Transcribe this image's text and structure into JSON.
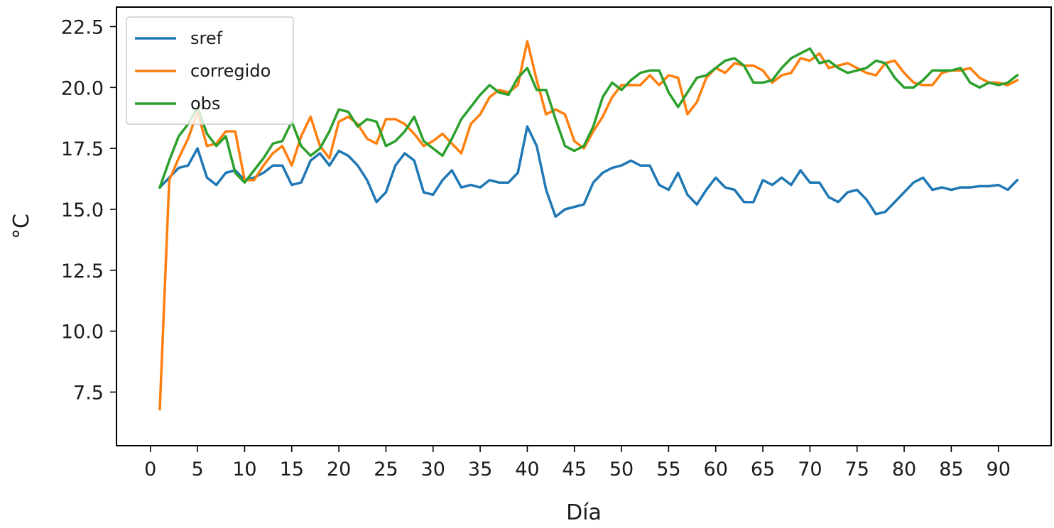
{
  "chart_data": {
    "type": "line",
    "title": "",
    "xlabel": "Día",
    "ylabel": "°C",
    "xlim": [
      -3.6,
      95.6
    ],
    "ylim": [
      5.3,
      23.3
    ],
    "xticks": [
      0,
      5,
      10,
      15,
      20,
      25,
      30,
      35,
      40,
      45,
      50,
      55,
      60,
      65,
      70,
      75,
      80,
      85,
      90
    ],
    "xtick_labels": [
      "0",
      "5",
      "10",
      "15",
      "20",
      "25",
      "30",
      "35",
      "40",
      "45",
      "50",
      "55",
      "60",
      "65",
      "70",
      "75",
      "80",
      "85",
      "90"
    ],
    "yticks": [
      7.5,
      10.0,
      12.5,
      15.0,
      17.5,
      20.0,
      22.5
    ],
    "ytick_labels": [
      "7.5",
      "10.0",
      "12.5",
      "15.0",
      "17.5",
      "20.0",
      "22.5"
    ],
    "grid": false,
    "legend_position": "top-left",
    "x": [
      1,
      2,
      3,
      4,
      5,
      6,
      7,
      8,
      9,
      10,
      11,
      12,
      13,
      14,
      15,
      16,
      17,
      18,
      19,
      20,
      21,
      22,
      23,
      24,
      25,
      26,
      27,
      28,
      29,
      30,
      31,
      32,
      33,
      34,
      35,
      36,
      37,
      38,
      39,
      40,
      41,
      42,
      43,
      44,
      45,
      46,
      47,
      48,
      49,
      50,
      51,
      52,
      53,
      54,
      55,
      56,
      57,
      58,
      59,
      60,
      61,
      62,
      63,
      64,
      65,
      66,
      67,
      68,
      69,
      70,
      71,
      72,
      73,
      74,
      75,
      76,
      77,
      78,
      79,
      80,
      81,
      82,
      83,
      84,
      85,
      86,
      87,
      88,
      89,
      90,
      91,
      92
    ],
    "series": [
      {
        "name": "sref",
        "color": "#1f77b4",
        "values": [
          15.9,
          16.3,
          16.7,
          16.8,
          17.5,
          16.3,
          16.0,
          16.5,
          16.6,
          16.2,
          16.3,
          16.5,
          16.8,
          16.8,
          16.0,
          16.1,
          17.0,
          17.3,
          16.8,
          17.4,
          17.2,
          16.8,
          16.2,
          15.3,
          15.7,
          16.8,
          17.3,
          17.0,
          15.7,
          15.6,
          16.2,
          16.6,
          15.9,
          16.0,
          15.9,
          16.2,
          16.1,
          16.1,
          16.5,
          18.4,
          17.6,
          15.8,
          14.7,
          15.0,
          15.1,
          15.2,
          16.1,
          16.5,
          16.7,
          16.8,
          17.0,
          16.8,
          16.8,
          16.0,
          15.8,
          16.5,
          15.6,
          15.2,
          15.8,
          16.3,
          15.9,
          15.8,
          15.3,
          15.3,
          16.2,
          16.0,
          16.3,
          16.0,
          16.6,
          16.1,
          16.1,
          15.5,
          15.3,
          15.7,
          15.8,
          15.4,
          14.8,
          14.9,
          15.3,
          15.7,
          16.1,
          16.3,
          15.8,
          15.9,
          15.8,
          15.9,
          15.9,
          15.95,
          15.95,
          16.0,
          15.8,
          16.2
        ]
      },
      {
        "name": "corregido",
        "color": "#ff7f0e",
        "values": [
          6.8,
          16.2,
          17.1,
          17.9,
          19.0,
          17.6,
          17.7,
          18.2,
          18.2,
          16.2,
          16.2,
          16.8,
          17.3,
          17.6,
          16.8,
          18.0,
          18.8,
          17.6,
          17.1,
          18.6,
          18.8,
          18.5,
          17.9,
          17.7,
          18.7,
          18.7,
          18.5,
          18.1,
          17.6,
          17.8,
          18.1,
          17.7,
          17.3,
          18.5,
          18.9,
          19.6,
          19.9,
          19.8,
          20.1,
          21.9,
          20.3,
          18.9,
          19.1,
          18.9,
          17.8,
          17.5,
          18.2,
          18.8,
          19.6,
          20.1,
          20.1,
          20.1,
          20.5,
          20.1,
          20.5,
          20.4,
          18.9,
          19.4,
          20.4,
          20.8,
          20.6,
          21.0,
          20.9,
          20.9,
          20.7,
          20.2,
          20.5,
          20.6,
          21.2,
          21.1,
          21.4,
          20.8,
          20.9,
          21.0,
          20.8,
          20.6,
          20.5,
          21.0,
          21.1,
          20.6,
          20.2,
          20.1,
          20.1,
          20.6,
          20.7,
          20.7,
          20.8,
          20.4,
          20.2,
          20.2,
          20.1,
          20.3
        ]
      },
      {
        "name": "obs",
        "color": "#2ca02c",
        "values": [
          15.9,
          17.0,
          18.0,
          18.5,
          19.2,
          18.1,
          17.6,
          18.0,
          16.5,
          16.1,
          16.6,
          17.1,
          17.7,
          17.8,
          18.6,
          17.6,
          17.2,
          17.5,
          18.2,
          19.1,
          19.0,
          18.4,
          18.7,
          18.6,
          17.6,
          17.8,
          18.2,
          18.8,
          17.8,
          17.5,
          17.2,
          17.9,
          18.7,
          19.2,
          19.7,
          20.1,
          19.8,
          19.7,
          20.4,
          20.8,
          19.9,
          19.9,
          18.7,
          17.6,
          17.4,
          17.6,
          18.4,
          19.6,
          20.2,
          19.9,
          20.3,
          20.6,
          20.7,
          20.7,
          19.8,
          19.2,
          19.8,
          20.4,
          20.5,
          20.8,
          21.1,
          21.2,
          20.9,
          20.2,
          20.2,
          20.3,
          20.8,
          21.2,
          21.4,
          21.6,
          21.0,
          21.1,
          20.8,
          20.6,
          20.7,
          20.8,
          21.1,
          21.0,
          20.4,
          20.0,
          20.0,
          20.3,
          20.7,
          20.7,
          20.7,
          20.8,
          20.2,
          20.0,
          20.2,
          20.1,
          20.2,
          20.5
        ]
      }
    ]
  }
}
